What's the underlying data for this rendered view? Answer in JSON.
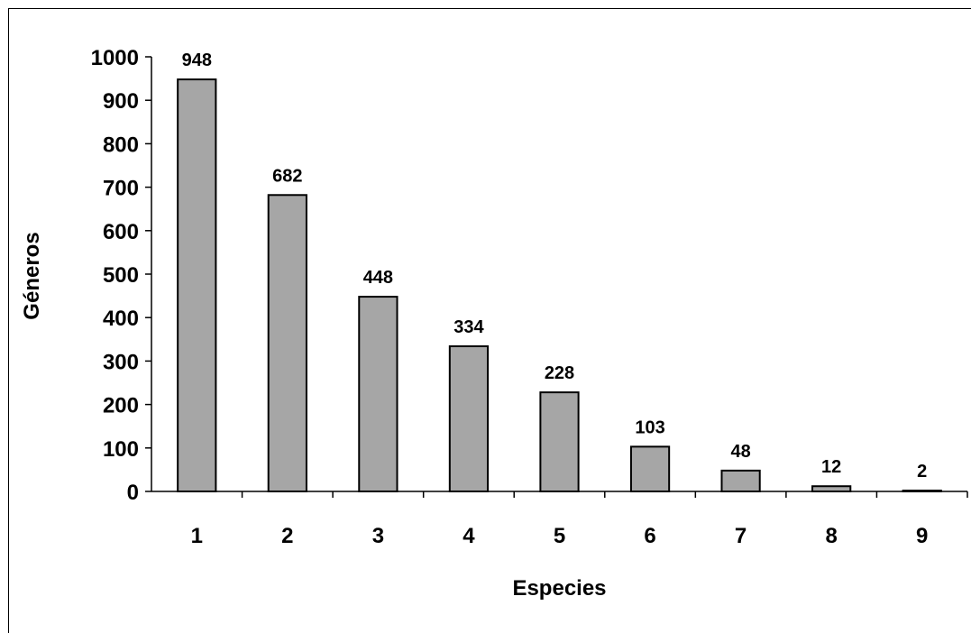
{
  "chart_data": {
    "type": "bar",
    "categories": [
      "1",
      "2",
      "3",
      "4",
      "5",
      "6",
      "7",
      "8",
      "9"
    ],
    "values": [
      948,
      682,
      448,
      334,
      228,
      103,
      48,
      12,
      2
    ],
    "data_labels": [
      "948",
      "682",
      "448",
      "334",
      "228",
      "103",
      "48",
      "12",
      "2"
    ],
    "xlabel": "Especies",
    "ylabel": "Géneros",
    "ylim": [
      0,
      1000
    ],
    "yticks": [
      0,
      100,
      200,
      300,
      400,
      500,
      600,
      700,
      800,
      900,
      1000
    ],
    "grid": false,
    "legend": "none",
    "bar_color": "#a6a6a6"
  }
}
